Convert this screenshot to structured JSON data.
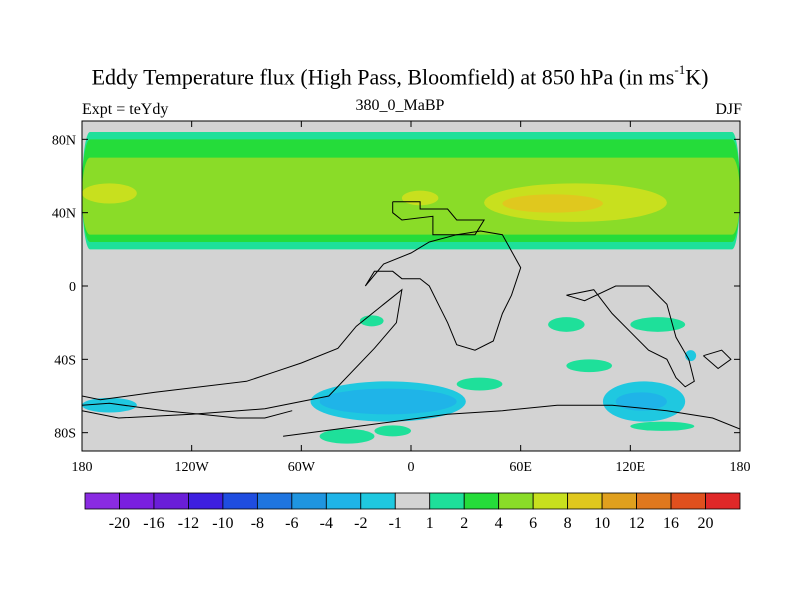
{
  "title": {
    "main": "Eddy Temperature flux (High Pass, Bloomfield) at 850 hPa (in ms",
    "sup": "-1",
    "tail": "K)"
  },
  "subtitle": {
    "left": "Expt = teYdy",
    "center": "380_0_MaBP",
    "right": "DJF"
  },
  "chart_data": {
    "type": "heatmap",
    "title": "Eddy Temperature flux (High Pass, Bloomfield) at 850 hPa (in ms-1K)",
    "projection": "cylindrical-equidistant",
    "x_range": [
      -180,
      180
    ],
    "y_range": [
      -90,
      90
    ],
    "x_ticks": [
      {
        "value": -180,
        "label": "180"
      },
      {
        "value": -120,
        "label": "120W"
      },
      {
        "value": -60,
        "label": "60W"
      },
      {
        "value": 0,
        "label": "0"
      },
      {
        "value": 60,
        "label": "60E"
      },
      {
        "value": 120,
        "label": "120E"
      },
      {
        "value": 180,
        "label": "180"
      }
    ],
    "y_ticks": [
      {
        "value": 80,
        "label": "80N"
      },
      {
        "value": 40,
        "label": "40N"
      },
      {
        "value": 0,
        "label": "0"
      },
      {
        "value": -40,
        "label": "40S"
      },
      {
        "value": -80,
        "label": "80S"
      }
    ],
    "colorbar": {
      "colors": [
        "#8a2be2",
        "#7a1fe0",
        "#6a1ed8",
        "#3d1fe0",
        "#1f4de0",
        "#1f75e0",
        "#1f95e0",
        "#1fb4e8",
        "#1fc8e0",
        "#d3d3d3",
        "#1ee09a",
        "#25dc3a",
        "#8adc28",
        "#c8e01e",
        "#e0c81e",
        "#e0a01e",
        "#e0781e",
        "#e0501e",
        "#e02828"
      ],
      "labels": [
        "-20",
        "-16",
        "-12",
        "-10",
        "-8",
        "-6",
        "-4",
        "-2",
        "-1",
        "1",
        "2",
        "4",
        "6",
        "8",
        "10",
        "12",
        "16",
        "20"
      ]
    },
    "regions": [
      {
        "level": "2",
        "color": "#1ee09a",
        "lon": [
          -180,
          180
        ],
        "lat": [
          20,
          84
        ]
      },
      {
        "level": "4",
        "color": "#25dc3a",
        "lon": [
          -180,
          180
        ],
        "lat": [
          24,
          80
        ]
      },
      {
        "level": "6",
        "color": "#8adc28",
        "lon": [
          -180,
          180
        ],
        "lat": [
          28,
          70
        ]
      },
      {
        "level": "8",
        "color": "#c8e01e",
        "lon": [
          -180,
          -150
        ],
        "lat": [
          45,
          56
        ]
      },
      {
        "level": "8",
        "color": "#c8e01e",
        "lon": [
          -5,
          15
        ],
        "lat": [
          44,
          52
        ]
      },
      {
        "level": "8",
        "color": "#c8e01e",
        "lon": [
          40,
          140
        ],
        "lat": [
          35,
          56
        ]
      },
      {
        "level": "10",
        "color": "#e0c81e",
        "lon": [
          50,
          105
        ],
        "lat": [
          40,
          50
        ]
      },
      {
        "level": "-1",
        "color": "#1fc8e0",
        "lon": [
          -55,
          30
        ],
        "lat": [
          -74,
          -52
        ]
      },
      {
        "level": "-2",
        "color": "#1fb4e8",
        "lon": [
          -50,
          25
        ],
        "lat": [
          -70,
          -56
        ]
      },
      {
        "level": "-1",
        "color": "#1fc8e0",
        "lon": [
          105,
          150
        ],
        "lat": [
          -74,
          -52
        ]
      },
      {
        "level": "-2",
        "color": "#1fb4e8",
        "lon": [
          112,
          140
        ],
        "lat": [
          -68,
          -58
        ]
      },
      {
        "level": "-1",
        "color": "#1fc8e0",
        "lon": [
          -180,
          -150
        ],
        "lat": [
          -69,
          -61
        ]
      },
      {
        "level": "-1",
        "color": "#1fc8e0",
        "lon": [
          150,
          156
        ],
        "lat": [
          -41,
          -35
        ]
      },
      {
        "level": "2",
        "color": "#1ee09a",
        "lon": [
          -28,
          -15
        ],
        "lat": [
          -22,
          -16
        ]
      },
      {
        "level": "2",
        "color": "#1ee09a",
        "lon": [
          75,
          95
        ],
        "lat": [
          -25,
          -17
        ]
      },
      {
        "level": "2",
        "color": "#1ee09a",
        "lon": [
          120,
          150
        ],
        "lat": [
          -25,
          -17
        ]
      },
      {
        "level": "2",
        "color": "#1ee09a",
        "lon": [
          85,
          110
        ],
        "lat": [
          -47,
          -40
        ]
      },
      {
        "level": "2",
        "color": "#1ee09a",
        "lon": [
          25,
          50
        ],
        "lat": [
          -57,
          -50
        ]
      },
      {
        "level": "2",
        "color": "#1ee09a",
        "lon": [
          -50,
          -20
        ],
        "lat": [
          -86,
          -78
        ]
      },
      {
        "level": "2",
        "color": "#1ee09a",
        "lon": [
          -20,
          0
        ],
        "lat": [
          -82,
          -76
        ]
      },
      {
        "level": "2",
        "color": "#1ee09a",
        "lon": [
          120,
          155
        ],
        "lat": [
          -79,
          -74
        ]
      }
    ],
    "land_outlines": [
      [
        [
          -10,
          46
        ],
        [
          5,
          46
        ],
        [
          5,
          42
        ],
        [
          20,
          42
        ],
        [
          25,
          36
        ],
        [
          40,
          36
        ],
        [
          35,
          28
        ],
        [
          12,
          28
        ],
        [
          12,
          38
        ],
        [
          -5,
          36
        ],
        [
          -10,
          40
        ],
        [
          -10,
          46
        ]
      ],
      [
        [
          -25,
          0
        ],
        [
          -20,
          8
        ],
        [
          -10,
          8
        ],
        [
          -5,
          4
        ],
        [
          5,
          4
        ],
        [
          10,
          0
        ],
        [
          15,
          -10
        ],
        [
          20,
          -20
        ],
        [
          25,
          -32
        ],
        [
          35,
          -35
        ],
        [
          45,
          -30
        ],
        [
          50,
          -15
        ],
        [
          55,
          -5
        ],
        [
          60,
          10
        ],
        [
          50,
          28
        ],
        [
          38,
          30
        ],
        [
          25,
          28
        ],
        [
          10,
          24
        ],
        [
          0,
          18
        ],
        [
          -15,
          12
        ],
        [
          -25,
          0
        ]
      ],
      [
        [
          -180,
          -60
        ],
        [
          -170,
          -62
        ],
        [
          -140,
          -58
        ],
        [
          -90,
          -52
        ],
        [
          -75,
          -47
        ],
        [
          -60,
          -42
        ],
        [
          -40,
          -34
        ],
        [
          -30,
          -22
        ],
        [
          -15,
          -10
        ],
        [
          -5,
          -2
        ],
        [
          -8,
          -20
        ],
        [
          -20,
          -34
        ],
        [
          -45,
          -60
        ],
        [
          -80,
          -67
        ],
        [
          -120,
          -70
        ],
        [
          -160,
          -72
        ],
        [
          -180,
          -68
        ]
      ],
      [
        [
          85,
          -5
        ],
        [
          100,
          -2
        ],
        [
          110,
          -15
        ],
        [
          120,
          -25
        ],
        [
          130,
          -35
        ],
        [
          140,
          -40
        ],
        [
          145,
          -50
        ],
        [
          150,
          -55
        ],
        [
          155,
          -52
        ],
        [
          152,
          -40
        ],
        [
          145,
          -28
        ],
        [
          140,
          -10
        ],
        [
          130,
          0
        ],
        [
          112,
          0
        ],
        [
          95,
          -8
        ],
        [
          85,
          -5
        ]
      ],
      [
        [
          -70,
          -82
        ],
        [
          -40,
          -78
        ],
        [
          -10,
          -74
        ],
        [
          20,
          -70
        ],
        [
          50,
          -68
        ],
        [
          80,
          -65
        ],
        [
          110,
          -65
        ],
        [
          140,
          -68
        ],
        [
          165,
          -72
        ],
        [
          180,
          -78
        ]
      ],
      [
        [
          -180,
          -65
        ],
        [
          -165,
          -64
        ],
        [
          -150,
          -66
        ],
        [
          -135,
          -68
        ],
        [
          -115,
          -70
        ],
        [
          -95,
          -72
        ],
        [
          -80,
          -72
        ],
        [
          -65,
          -68
        ]
      ],
      [
        [
          160,
          -38
        ],
        [
          170,
          -35
        ],
        [
          175,
          -40
        ],
        [
          168,
          -45
        ],
        [
          160,
          -38
        ]
      ]
    ]
  }
}
